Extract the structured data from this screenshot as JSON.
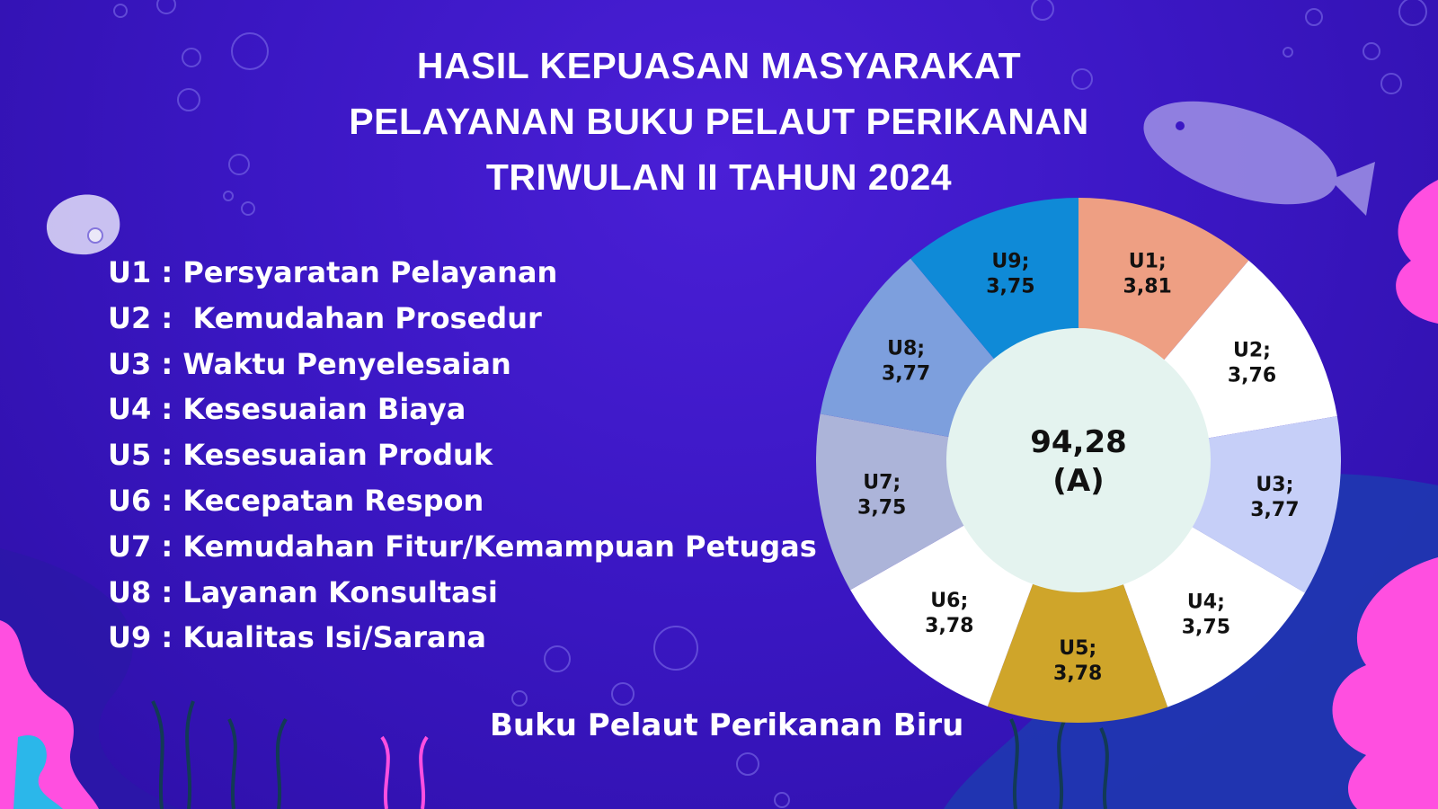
{
  "title_lines": [
    "HASIL KEPUASAN MASYARAKAT",
    "PELAYANAN BUKU PELAUT PERIKANAN",
    "TRIWULAN II TAHUN 2024"
  ],
  "legend": [
    "U1 : Persyaratan Pelayanan",
    "U2 :  Kemudahan Prosedur",
    "U3 : Waktu Penyelesaian",
    "U4 : Kesesuaian Biaya",
    "U5 : Kesesuaian Produk",
    "U6 : Kecepatan Respon",
    "U7 : Kemudahan Fitur/Kemampuan Petugas",
    "U8 : Layanan Konsultasi",
    "U9 : Kualitas Isi/Sarana"
  ],
  "footer": "Buku Pelaut Perikanan Biru",
  "chart_data": {
    "type": "pie",
    "variant": "donut",
    "categories": [
      "U1",
      "U2",
      "U3",
      "U4",
      "U5",
      "U6",
      "U7",
      "U8",
      "U9"
    ],
    "values": [
      3.81,
      3.76,
      3.77,
      3.75,
      3.78,
      3.78,
      3.75,
      3.77,
      3.75
    ],
    "value_labels": [
      "3,81",
      "3,76",
      "3,77",
      "3,75",
      "3,78",
      "3,78",
      "3,75",
      "3,77",
      "3,75"
    ],
    "colors": [
      "#ee9f83",
      "#ffffff",
      "#c6cff8",
      "#ffffff",
      "#cfa52a",
      "#ffffff",
      "#acb4d9",
      "#7d9fdd",
      "#0f8ad7"
    ],
    "center_value": "94,28",
    "center_grade": "(A)",
    "center_color": "#e4f3ef"
  }
}
